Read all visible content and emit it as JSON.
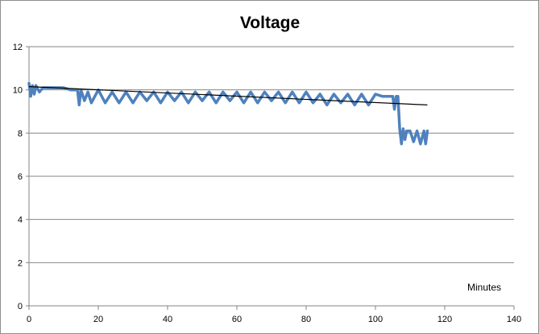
{
  "chart_data": {
    "type": "line",
    "title": "Voltage",
    "xlabel": "Minutes",
    "ylabel": "",
    "xlim": [
      0,
      140
    ],
    "ylim": [
      0,
      12
    ],
    "x_ticks": [
      "0",
      "20",
      "40",
      "60",
      "80",
      "100",
      "120",
      "140"
    ],
    "y_ticks": [
      "0",
      "2",
      "4",
      "6",
      "8",
      "10",
      "12"
    ],
    "grid": "horizontal",
    "legend": "none",
    "colors": {
      "series": "#4f81bd",
      "trend": "#000000",
      "grid": "#868686"
    },
    "series": [
      {
        "type": "line",
        "x": [
          0,
          0.5,
          1,
          1.5,
          2,
          3,
          4,
          6,
          8,
          10,
          12,
          14,
          14.5,
          15,
          16,
          17,
          18,
          20,
          22,
          24,
          26,
          28,
          30,
          32,
          34,
          36,
          38,
          40,
          42,
          44,
          46,
          48,
          50,
          52,
          54,
          56,
          58,
          60,
          62,
          64,
          66,
          68,
          70,
          72,
          74,
          76,
          78,
          80,
          82,
          84,
          86,
          88,
          90,
          92,
          94,
          96,
          98,
          100,
          102,
          104,
          105,
          105.5,
          106,
          106.5,
          107,
          107.5,
          108,
          108.5,
          109,
          110,
          111,
          112,
          113,
          114,
          114.5,
          115
        ],
        "y": [
          10.3,
          9.7,
          10.2,
          9.8,
          10.2,
          9.9,
          10.1,
          10.1,
          10.1,
          10.1,
          10.0,
          10.0,
          9.3,
          10.0,
          9.5,
          9.9,
          9.4,
          10.0,
          9.4,
          9.9,
          9.4,
          9.9,
          9.4,
          9.9,
          9.5,
          9.9,
          9.4,
          9.9,
          9.5,
          9.9,
          9.4,
          9.9,
          9.5,
          9.9,
          9.4,
          9.9,
          9.5,
          9.9,
          9.4,
          9.9,
          9.4,
          9.9,
          9.5,
          9.9,
          9.4,
          9.9,
          9.4,
          9.9,
          9.4,
          9.8,
          9.3,
          9.8,
          9.4,
          9.8,
          9.3,
          9.8,
          9.3,
          9.8,
          9.7,
          9.7,
          9.7,
          9.1,
          9.7,
          9.7,
          8.2,
          7.5,
          8.2,
          7.7,
          8.1,
          8.1,
          7.6,
          8.1,
          7.5,
          8.1,
          7.5,
          8.1
        ]
      },
      {
        "type": "trendline",
        "x": [
          0,
          115
        ],
        "y": [
          10.15,
          9.3
        ]
      }
    ]
  }
}
